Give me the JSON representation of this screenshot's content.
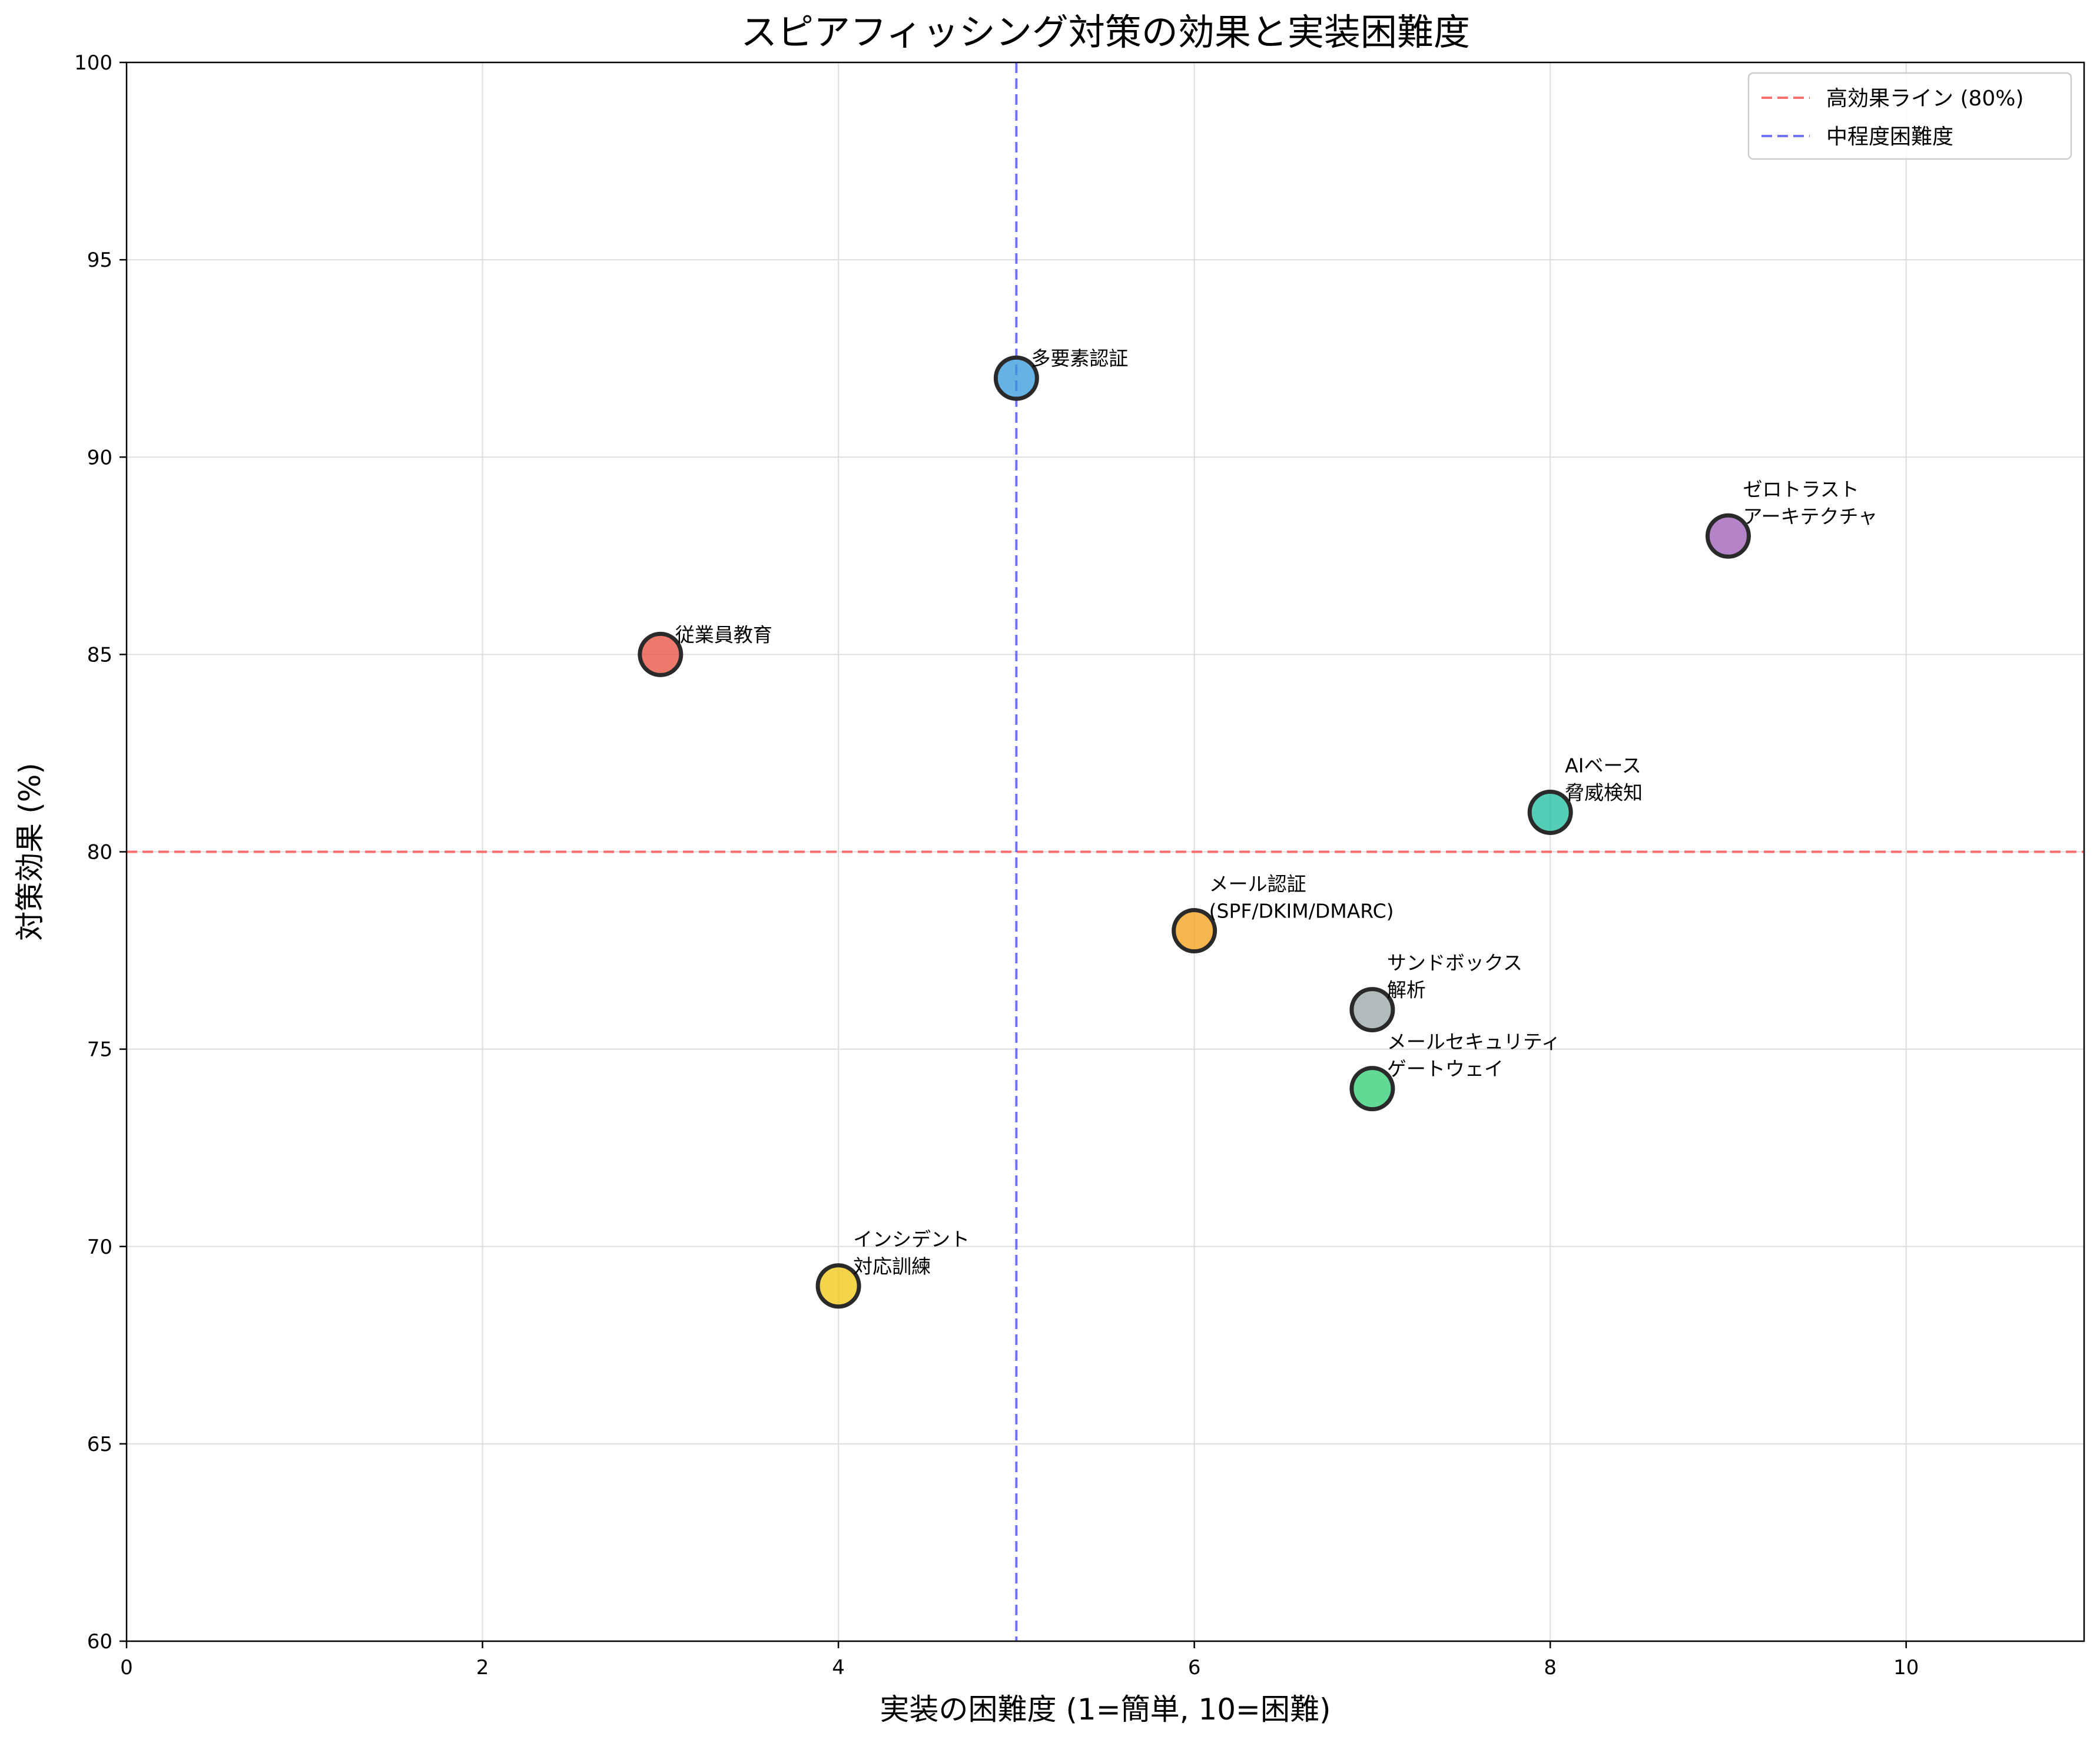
{
  "chart_data": {
    "type": "scatter",
    "title": "スピアフィッシング対策の効果と実装困難度",
    "xlabel": "実装の困難度 (1=簡単, 10=困難)",
    "ylabel": "対策効果 (%)",
    "xlim": [
      0,
      11
    ],
    "ylim": [
      60,
      100
    ],
    "xticks": [
      "0",
      "2",
      "4",
      "6",
      "8",
      "10"
    ],
    "yticks": [
      "60",
      "65",
      "70",
      "75",
      "80",
      "85",
      "90",
      "95",
      "100"
    ],
    "grid": true,
    "legend_position": "top-right",
    "points": [
      {
        "label": [
          "従業員教育"
        ],
        "x": 3,
        "y": 85,
        "color": "#E74C3C"
      },
      {
        "label": [
          "多要素認証"
        ],
        "x": 5,
        "y": 92,
        "color": "#3498DB"
      },
      {
        "label": [
          "メール認証",
          "(SPF/DKIM/DMARC)"
        ],
        "x": 6,
        "y": 78,
        "color": "#F39C12"
      },
      {
        "label": [
          "AIベース",
          "脅威検知"
        ],
        "x": 8,
        "y": 81,
        "color": "#1ABC9C"
      },
      {
        "label": [
          "サンドボックス",
          "解析"
        ],
        "x": 7,
        "y": 76,
        "color": "#95A5A6"
      },
      {
        "label": [
          "ゼロトラスト",
          "アーキテクチャ"
        ],
        "x": 9,
        "y": 88,
        "color": "#9B59B6"
      },
      {
        "label": [
          "インシデント",
          "対応訓練"
        ],
        "x": 4,
        "y": 69,
        "color": "#F1C40F"
      },
      {
        "label": [
          "メールセキュリティ",
          "ゲートウェイ"
        ],
        "x": 7,
        "y": 74,
        "color": "#2ECC71"
      }
    ],
    "reference_lines": [
      {
        "orientation": "horizontal",
        "value": 80,
        "color": "#FF4D4D",
        "label": "高効果ライン (80%)"
      },
      {
        "orientation": "vertical",
        "value": 5,
        "color": "#4D4DFF",
        "label": "中程度困難度"
      }
    ]
  }
}
